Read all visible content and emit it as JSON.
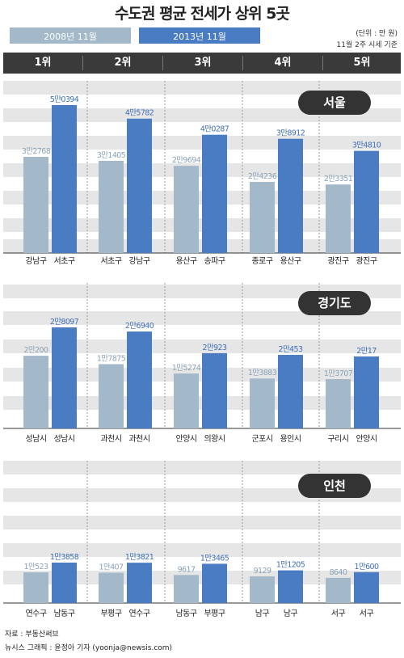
{
  "title": "수도권 평균 전세가 상위 5곳",
  "legend": [
    {
      "label": "2008년 11월",
      "color": "#a3b8c9"
    },
    {
      "label": "2013년 11월",
      "color": "#4a7cc4"
    }
  ],
  "unit_line1": "(단위 : 만 원)",
  "unit_line2": "11월 2주 시세 기준",
  "ranks": [
    "1위",
    "2위",
    "3위",
    "4위",
    "5위"
  ],
  "footer_source": "자료 : 부동산써브",
  "footer_credit": "뉴시스 그래픽 : 윤정아 기자 (yoonja@newsis.com)",
  "chart_data": {
    "type": "bar",
    "series": [
      {
        "name": "2008년 11월"
      },
      {
        "name": "2013년 11월"
      }
    ],
    "panels": [
      {
        "region": "서울",
        "groups": [
          {
            "labels": [
              "강남구",
              "서초구"
            ],
            "values": [
              32768,
              50394
            ],
            "value_labels": [
              "3만2768",
              "5만0394"
            ]
          },
          {
            "labels": [
              "서초구",
              "강남구"
            ],
            "values": [
              31405,
              45782
            ],
            "value_labels": [
              "3만1405",
              "4만5782"
            ]
          },
          {
            "labels": [
              "용산구",
              "송파구"
            ],
            "values": [
              29694,
              40287
            ],
            "value_labels": [
              "2만9694",
              "4만0287"
            ]
          },
          {
            "labels": [
              "종로구",
              "용산구"
            ],
            "values": [
              24236,
              38912
            ],
            "value_labels": [
              "2만4236",
              "3만8912"
            ]
          },
          {
            "labels": [
              "광진구",
              "광진구"
            ],
            "values": [
              23351,
              34810
            ],
            "value_labels": [
              "2만3351",
              "3만4810"
            ]
          }
        ]
      },
      {
        "region": "경기도",
        "groups": [
          {
            "labels": [
              "성남시",
              "성남시"
            ],
            "values": [
              20200,
              28097
            ],
            "value_labels": [
              "2만200",
              "2만8097"
            ]
          },
          {
            "labels": [
              "과천시",
              "과천시"
            ],
            "values": [
              17875,
              26940
            ],
            "value_labels": [
              "1만7875",
              "2만6940"
            ]
          },
          {
            "labels": [
              "안양시",
              "의왕시"
            ],
            "values": [
              15274,
              20923
            ],
            "value_labels": [
              "1만5274",
              "2만923"
            ]
          },
          {
            "labels": [
              "군포시",
              "용인시"
            ],
            "values": [
              13883,
              20453
            ],
            "value_labels": [
              "1만3883",
              "2만453"
            ]
          },
          {
            "labels": [
              "구리시",
              "안양시"
            ],
            "values": [
              13707,
              20017
            ],
            "value_labels": [
              "1만3707",
              "2만17"
            ]
          }
        ]
      },
      {
        "region": "인천",
        "groups": [
          {
            "labels": [
              "연수구",
              "남동구"
            ],
            "values": [
              10523,
              13858
            ],
            "value_labels": [
              "1만523",
              "1만3858"
            ]
          },
          {
            "labels": [
              "부평구",
              "연수구"
            ],
            "values": [
              10407,
              13821
            ],
            "value_labels": [
              "1만407",
              "1만3821"
            ]
          },
          {
            "labels": [
              "남동구",
              "부평구"
            ],
            "values": [
              9617,
              13465
            ],
            "value_labels": [
              "9617",
              "1만3465"
            ]
          },
          {
            "labels": [
              "남구",
              "남구"
            ],
            "values": [
              9129,
              11205
            ],
            "value_labels": [
              "9129",
              "1만1205"
            ]
          },
          {
            "labels": [
              "서구",
              "서구"
            ],
            "values": [
              8640,
              10600
            ],
            "value_labels": [
              "8640",
              "1만600"
            ]
          }
        ]
      }
    ]
  }
}
